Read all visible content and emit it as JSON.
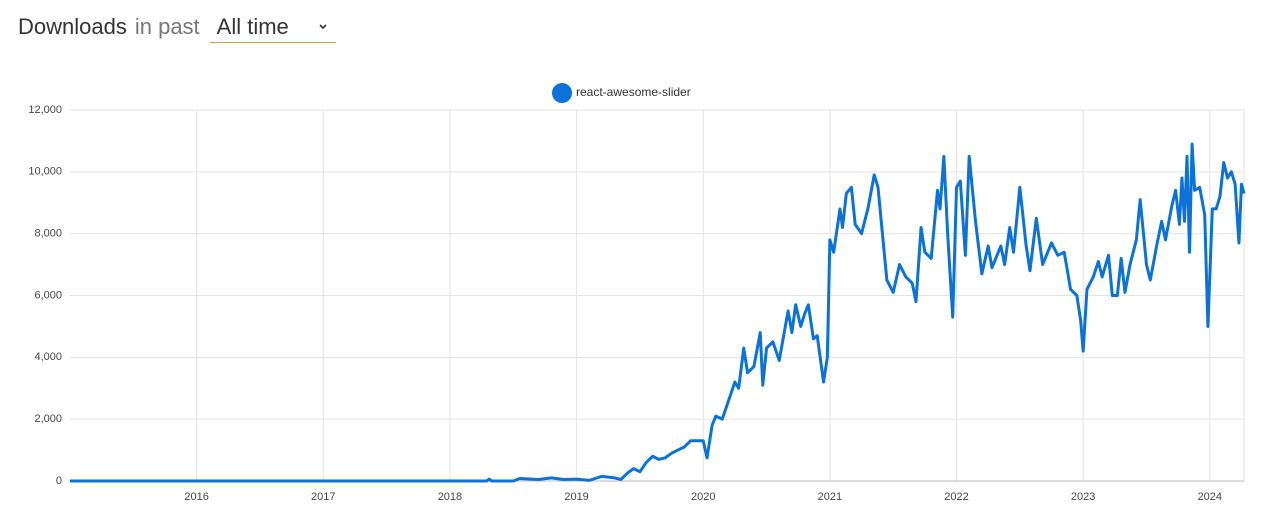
{
  "header": {
    "title": "Downloads",
    "subtitle": "in past",
    "range": "All time"
  },
  "chart_data": {
    "type": "line",
    "x": [
      2015.0,
      2016.0,
      2017.0,
      2018.0,
      2018.29,
      2018.31,
      2018.33,
      2018.5,
      2018.55,
      2018.7,
      2018.8,
      2018.9,
      2019.0,
      2019.1,
      2019.2,
      2019.3,
      2019.35,
      2019.4,
      2019.45,
      2019.5,
      2019.55,
      2019.6,
      2019.65,
      2019.7,
      2019.75,
      2019.8,
      2019.85,
      2019.9,
      2019.95,
      2020.0,
      2020.03,
      2020.07,
      2020.1,
      2020.15,
      2020.2,
      2020.25,
      2020.28,
      2020.32,
      2020.35,
      2020.4,
      2020.45,
      2020.47,
      2020.5,
      2020.55,
      2020.6,
      2020.67,
      2020.7,
      2020.73,
      2020.77,
      2020.8,
      2020.83,
      2020.87,
      2020.9,
      2020.95,
      2020.98,
      2021.0,
      2021.03,
      2021.08,
      2021.1,
      2021.13,
      2021.17,
      2021.2,
      2021.25,
      2021.3,
      2021.35,
      2021.38,
      2021.45,
      2021.5,
      2021.55,
      2021.6,
      2021.65,
      2021.68,
      2021.72,
      2021.75,
      2021.8,
      2021.85,
      2021.87,
      2021.9,
      2021.93,
      2021.97,
      2022.0,
      2022.03,
      2022.07,
      2022.1,
      2022.15,
      2022.2,
      2022.25,
      2022.28,
      2022.35,
      2022.38,
      2022.42,
      2022.45,
      2022.5,
      2022.55,
      2022.58,
      2022.63,
      2022.68,
      2022.75,
      2022.8,
      2022.85,
      2022.88,
      2022.9,
      2022.95,
      2022.98,
      2023.0,
      2023.03,
      2023.08,
      2023.12,
      2023.15,
      2023.2,
      2023.23,
      2023.27,
      2023.3,
      2023.33,
      2023.37,
      2023.42,
      2023.45,
      2023.5,
      2023.53,
      2023.58,
      2023.62,
      2023.65,
      2023.7,
      2023.73,
      2023.76,
      2023.78,
      2023.8,
      2023.82,
      2023.84,
      2023.86,
      2023.88,
      2023.92,
      2023.96,
      2023.985,
      2024.02,
      2024.05,
      2024.08,
      2024.11,
      2024.14,
      2024.17,
      2024.2,
      2024.23,
      2024.25,
      2024.27
    ],
    "series": [
      {
        "name": "react-awesome-slider",
        "color": "#0b72d9",
        "values": [
          0,
          0,
          0,
          0,
          0,
          60,
          0,
          0,
          80,
          50,
          100,
          50,
          60,
          20,
          150,
          100,
          50,
          250,
          400,
          300,
          600,
          800,
          700,
          750,
          900,
          1000,
          1100,
          1300,
          1300,
          1300,
          750,
          1800,
          2100,
          2000,
          2600,
          3200,
          3000,
          4300,
          3500,
          3700,
          4800,
          3100,
          4300,
          4500,
          3900,
          5500,
          4800,
          5700,
          5000,
          5400,
          5700,
          4600,
          4700,
          3200,
          4000,
          7800,
          7400,
          8800,
          8200,
          9300,
          9500,
          8300,
          8000,
          8800,
          9900,
          9500,
          6500,
          6100,
          7000,
          6600,
          6400,
          5800,
          8200,
          7400,
          7200,
          9400,
          8800,
          10500,
          8000,
          5300,
          9500,
          9700,
          7300,
          10500,
          8400,
          6700,
          7600,
          6900,
          7600,
          7000,
          8200,
          7400,
          9500,
          7600,
          6800,
          8500,
          7000,
          7700,
          7300,
          7400,
          6700,
          6200,
          6000,
          5200,
          4200,
          6200,
          6600,
          7100,
          6600,
          7300,
          6000,
          6000,
          7200,
          6100,
          7000,
          7800,
          9100,
          7000,
          6500,
          7600,
          8400,
          7800,
          8900,
          9400,
          8300,
          9800,
          8400,
          10500,
          7400,
          10900,
          9400,
          9500,
          8600,
          5000,
          8800,
          8800,
          9200,
          10300,
          9800,
          10000,
          9600,
          7700,
          9600,
          9300
        ]
      }
    ],
    "xlim": [
      2015.0,
      2024.27
    ],
    "xticks": [
      2016,
      2017,
      2018,
      2019,
      2020,
      2021,
      2022,
      2023,
      2024
    ],
    "ylim": [
      0,
      12000
    ],
    "yticks": [
      0,
      {
        "value": 2000,
        "label": "2,000"
      },
      {
        "value": 4000,
        "label": "4,000"
      },
      {
        "value": 6000,
        "label": "6,000"
      },
      {
        "value": 8000,
        "label": "8,000"
      },
      {
        "value": 10000,
        "label": "10,000"
      },
      {
        "value": 12000,
        "label": "12,000"
      }
    ],
    "grid": true
  }
}
